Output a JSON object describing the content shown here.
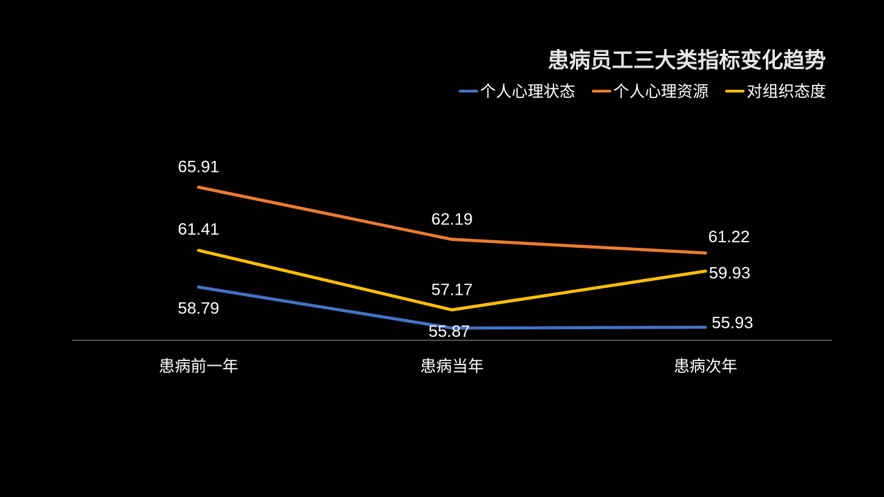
{
  "chart_data": {
    "type": "line",
    "title": "患病员工三大类指标变化趋势",
    "categories": [
      "患病前一年",
      "患病当年",
      "患病次年"
    ],
    "series": [
      {
        "name": "个人心理状态",
        "color": "#4472C4",
        "values": [
          58.79,
          55.87,
          55.93
        ]
      },
      {
        "name": "个人心理资源",
        "color": "#ED7D31",
        "values": [
          65.91,
          62.19,
          61.22
        ]
      },
      {
        "name": "对组织态度",
        "color": "#FFC000",
        "values": [
          61.41,
          57.17,
          59.93
        ]
      }
    ],
    "xlabel": "",
    "ylabel": "",
    "ylim": [
      55,
      70
    ],
    "grid": false,
    "legend": "top-right",
    "data_labels": true
  },
  "colors": {
    "background": "#000000",
    "text": "#FFFFFF",
    "title": "#E6E6E6",
    "axis": "#A0A0A0"
  }
}
